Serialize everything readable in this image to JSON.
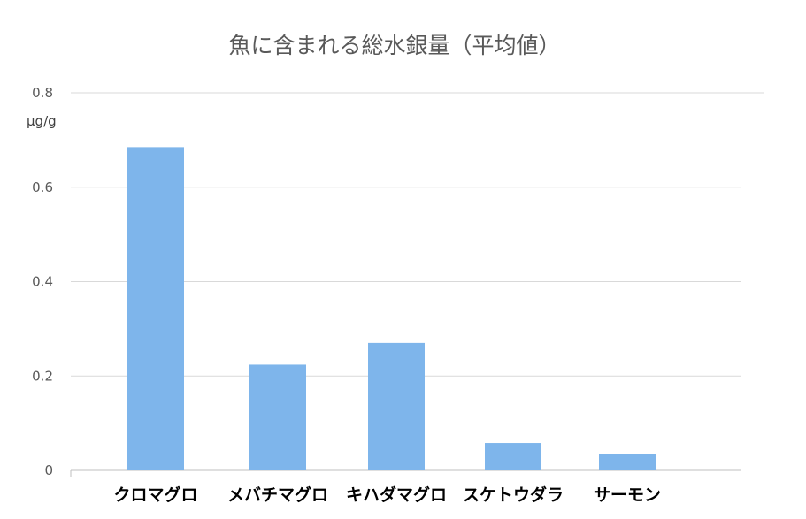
{
  "chart_data": {
    "type": "bar",
    "title": "魚に含まれる総水銀量（平均値）",
    "ylabel": "μg/g",
    "xlabel": "",
    "categories": [
      "クロマグロ",
      "メバチマグロ",
      "キハダマグロ",
      "スケトウダラ",
      "サーモン"
    ],
    "values": [
      0.685,
      0.224,
      0.27,
      0.058,
      0.035
    ],
    "ylim": [
      0,
      0.8
    ],
    "yticks": [
      "0",
      "0.2",
      "0.4",
      "0.6",
      "0.8"
    ],
    "grid": true,
    "legend": "none",
    "colors": {
      "bar": "#7EB5EB",
      "grid": "#D9D9D9",
      "axis": "#BFBFBF"
    }
  }
}
